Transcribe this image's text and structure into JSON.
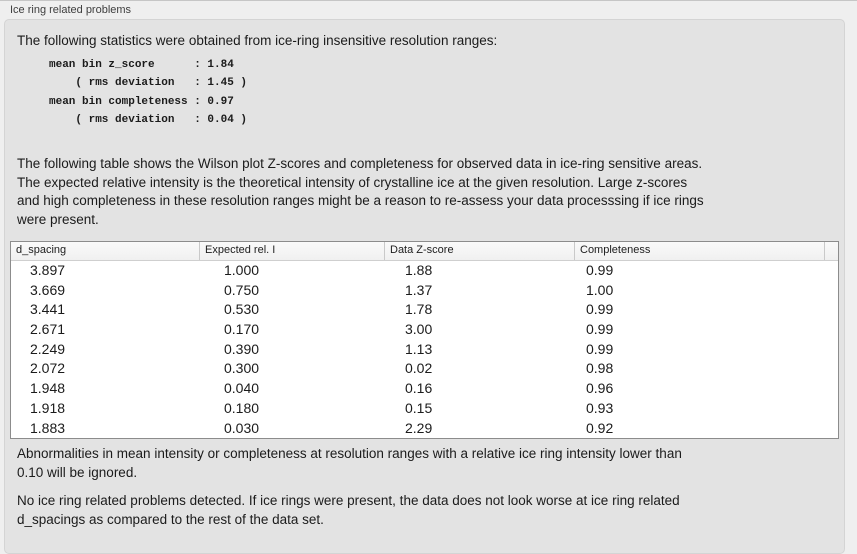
{
  "panel": {
    "title": "Ice ring related problems"
  },
  "intro": "The following statistics were obtained from ice-ring insensitive resolution ranges:",
  "stats": {
    "lines": [
      "mean bin z_score      : 1.84",
      "    ( rms deviation   : 1.45 )",
      "mean bin completeness : 0.97",
      "    ( rms deviation   : 0.04 )"
    ]
  },
  "description": [
    "The following table shows the Wilson plot Z-scores and completeness for observed data in ice-ring sensitive areas.",
    "The expected relative intensity is the theoretical intensity of crystalline ice at the given resolution. Large z-scores",
    "and high completeness in these resolution ranges might be a reason to re-assess your data processsing if ice rings",
    "were present."
  ],
  "table": {
    "columns": [
      "d_spacing",
      "Expected rel. I",
      "Data Z-score",
      "Completeness"
    ],
    "rows": [
      [
        "3.897",
        "1.000",
        "1.88",
        "0.99"
      ],
      [
        "3.669",
        "0.750",
        "1.37",
        "1.00"
      ],
      [
        "3.441",
        "0.530",
        "1.78",
        "0.99"
      ],
      [
        "2.671",
        "0.170",
        "3.00",
        "0.99"
      ],
      [
        "2.249",
        "0.390",
        "1.13",
        "0.99"
      ],
      [
        "2.072",
        "0.300",
        "0.02",
        "0.98"
      ],
      [
        "1.948",
        "0.040",
        "0.16",
        "0.96"
      ],
      [
        "1.918",
        "0.180",
        "0.15",
        "0.93"
      ],
      [
        "1.883",
        "0.030",
        "2.29",
        "0.92"
      ]
    ]
  },
  "note": [
    "Abnormalities in mean intensity or completeness at resolution ranges with a relative ice ring intensity lower than",
    "0.10 will be ignored."
  ],
  "conclusion": [
    "No ice ring related problems detected. If ice rings were present, the data does not look worse at ice ring related",
    "d_spacings as compared to the rest of the data set."
  ],
  "colors": {
    "page_bg": "#efefef",
    "panel_bg": "#e3e3e3",
    "table_border": "#8c8c8c",
    "text": "#1b1b1b"
  }
}
